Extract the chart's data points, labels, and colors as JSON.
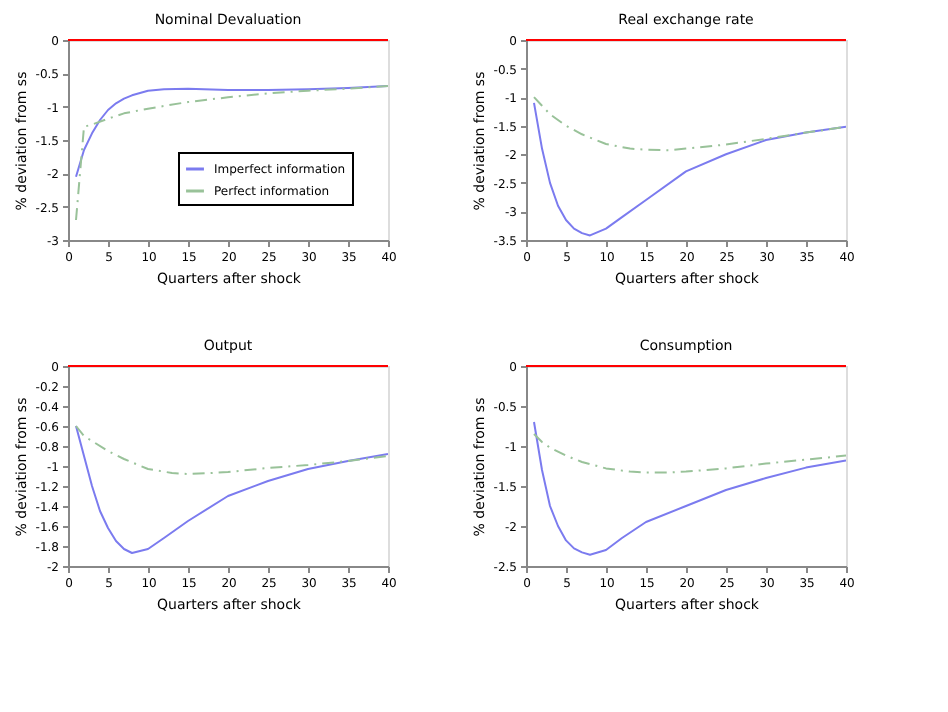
{
  "chart_data": [
    {
      "type": "line",
      "title": "Nominal Devaluation",
      "xlabel": "Quarters after shock",
      "ylabel": "% deviation from ss",
      "xlim": [
        0,
        40
      ],
      "xticks": [
        0,
        5,
        10,
        15,
        20,
        25,
        30,
        35,
        40
      ],
      "ylim": [
        -3,
        0
      ],
      "yticks": [
        -3,
        -2.5,
        -2,
        -1.5,
        -1,
        -0.5,
        0
      ],
      "legend": "bottom right",
      "grid": false,
      "ref_lines": [
        {
          "axis": "y",
          "value": 0,
          "color": "#ff0000"
        }
      ],
      "series": [
        {
          "name": "Imperfect information",
          "color": "#7b7bef",
          "line_style": "solid",
          "x": [
            1,
            2,
            3,
            4,
            5,
            6,
            7,
            8,
            10,
            12,
            15,
            20,
            25,
            30,
            35,
            40
          ],
          "values": [
            -2.05,
            -1.65,
            -1.4,
            -1.2,
            -1.05,
            -0.95,
            -0.88,
            -0.83,
            -0.76,
            -0.74,
            -0.73,
            -0.75,
            -0.75,
            -0.74,
            -0.72,
            -0.69
          ]
        },
        {
          "name": "Perfect information",
          "color": "#99c299",
          "line_style": "dashed",
          "x": [
            1,
            2,
            3,
            5,
            7,
            10,
            15,
            20,
            25,
            30,
            35,
            40
          ],
          "values": [
            -2.7,
            -1.3,
            -1.27,
            -1.18,
            -1.1,
            -1.03,
            -0.93,
            -0.86,
            -0.8,
            -0.76,
            -0.73,
            -0.69
          ]
        }
      ]
    },
    {
      "type": "line",
      "title": "Real exchange rate",
      "xlabel": "Quarters after shock",
      "ylabel": "% deviation from ss",
      "xlim": [
        0,
        40
      ],
      "xticks": [
        0,
        5,
        10,
        15,
        20,
        25,
        30,
        35,
        40
      ],
      "ylim": [
        -3.5,
        0
      ],
      "yticks": [
        -3.5,
        -3,
        -2.5,
        -2,
        -1.5,
        -1,
        -0.5,
        0
      ],
      "grid": false,
      "ref_lines": [
        {
          "axis": "y",
          "value": 0,
          "color": "#ff0000"
        }
      ],
      "series": [
        {
          "color": "#7b7bef",
          "line_style": "solid",
          "x": [
            1,
            2,
            3,
            4,
            5,
            6,
            7,
            8,
            10,
            12,
            15,
            20,
            25,
            30,
            35,
            40
          ],
          "values": [
            -1.1,
            -1.9,
            -2.5,
            -2.9,
            -3.15,
            -3.3,
            -3.38,
            -3.42,
            -3.3,
            -3.1,
            -2.8,
            -2.3,
            -2.0,
            -1.75,
            -1.62,
            -1.52
          ]
        },
        {
          "color": "#99c299",
          "line_style": "dashed",
          "x": [
            1,
            2,
            3,
            5,
            7,
            10,
            13,
            15,
            18,
            20,
            25,
            30,
            35,
            40
          ],
          "values": [
            -1.0,
            -1.15,
            -1.3,
            -1.5,
            -1.65,
            -1.82,
            -1.9,
            -1.92,
            -1.93,
            -1.9,
            -1.83,
            -1.73,
            -1.62,
            -1.52
          ]
        }
      ]
    },
    {
      "type": "line",
      "title": "Output",
      "xlabel": "Quarters after shock",
      "ylabel": "% deviation from ss",
      "xlim": [
        0,
        40
      ],
      "xticks": [
        0,
        5,
        10,
        15,
        20,
        25,
        30,
        35,
        40
      ],
      "ylim": [
        -2,
        0
      ],
      "yticks": [
        -2,
        -1.8,
        -1.6,
        -1.4,
        -1.2,
        -1,
        -0.8,
        -0.6,
        -0.4,
        -0.2,
        0
      ],
      "grid": false,
      "ref_lines": [
        {
          "axis": "y",
          "value": 0,
          "color": "#ff0000"
        }
      ],
      "series": [
        {
          "color": "#7b7bef",
          "line_style": "solid",
          "x": [
            1,
            2,
            3,
            4,
            5,
            6,
            7,
            8,
            10,
            12,
            15,
            20,
            25,
            30,
            35,
            40
          ],
          "values": [
            -0.6,
            -0.9,
            -1.2,
            -1.45,
            -1.62,
            -1.75,
            -1.83,
            -1.87,
            -1.83,
            -1.72,
            -1.55,
            -1.3,
            -1.15,
            -1.03,
            -0.95,
            -0.88
          ]
        },
        {
          "color": "#99c299",
          "line_style": "dashed",
          "x": [
            1,
            2,
            3,
            5,
            7,
            10,
            13,
            15,
            18,
            20,
            25,
            30,
            35,
            40
          ],
          "values": [
            -0.6,
            -0.7,
            -0.75,
            -0.85,
            -0.93,
            -1.03,
            -1.07,
            -1.08,
            -1.07,
            -1.06,
            -1.02,
            -0.99,
            -0.95,
            -0.9
          ]
        }
      ]
    },
    {
      "type": "line",
      "title": "Consumption",
      "xlabel": "Quarters after shock",
      "ylabel": "% deviation from ss",
      "xlim": [
        0,
        40
      ],
      "xticks": [
        0,
        5,
        10,
        15,
        20,
        25,
        30,
        35,
        40
      ],
      "ylim": [
        -2.5,
        0
      ],
      "yticks": [
        -2.5,
        -2,
        -1.5,
        -1,
        -0.5,
        0
      ],
      "grid": false,
      "ref_lines": [
        {
          "axis": "y",
          "value": 0,
          "color": "#ff0000"
        }
      ],
      "series": [
        {
          "color": "#7b7bef",
          "line_style": "solid",
          "x": [
            1,
            2,
            3,
            4,
            5,
            6,
            7,
            8,
            10,
            12,
            15,
            20,
            25,
            30,
            35,
            40
          ],
          "values": [
            -0.7,
            -1.3,
            -1.75,
            -2.0,
            -2.18,
            -2.28,
            -2.33,
            -2.36,
            -2.3,
            -2.15,
            -1.95,
            -1.75,
            -1.55,
            -1.4,
            -1.27,
            -1.18
          ]
        },
        {
          "color": "#99c299",
          "line_style": "dashed",
          "x": [
            1,
            2,
            3,
            5,
            7,
            10,
            13,
            15,
            18,
            20,
            25,
            30,
            35,
            40
          ],
          "values": [
            -0.85,
            -0.95,
            -1.02,
            -1.12,
            -1.2,
            -1.28,
            -1.32,
            -1.33,
            -1.33,
            -1.32,
            -1.28,
            -1.22,
            -1.17,
            -1.12
          ]
        }
      ]
    }
  ]
}
